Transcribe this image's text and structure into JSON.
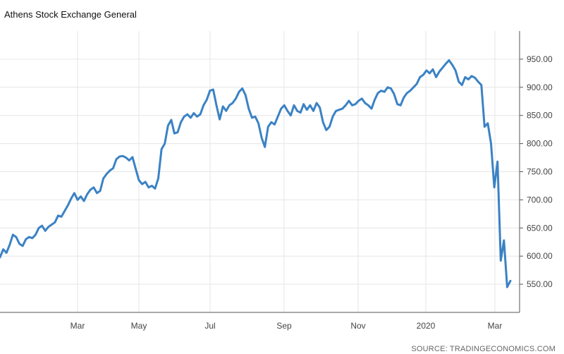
{
  "chart_data": {
    "type": "line",
    "title": "Athens Stock Exchange General",
    "xlabel": "",
    "ylabel": "",
    "x_tick_labels": [
      "Mar",
      "May",
      "Jul",
      "Sep",
      "Nov",
      "2020",
      "Mar"
    ],
    "y_tick_labels": [
      "550.00",
      "600.00",
      "650.00",
      "700.00",
      "750.00",
      "800.00",
      "850.00",
      "900.00",
      "950.00"
    ],
    "ylim": [
      500,
      1000
    ],
    "grid": true,
    "line_color": "#3b82c4",
    "series": [
      {
        "values": [
          598,
          612,
          606,
          620,
          638,
          634,
          622,
          618,
          630,
          634,
          632,
          638,
          650,
          654,
          645,
          652,
          656,
          660,
          672,
          670,
          680,
          690,
          702,
          712,
          700,
          706,
          698,
          710,
          718,
          722,
          712,
          716,
          738,
          746,
          752,
          756,
          772,
          777,
          778,
          775,
          770,
          776,
          755,
          735,
          728,
          732,
          722,
          725,
          720,
          738,
          790,
          800,
          832,
          842,
          818,
          820,
          838,
          848,
          852,
          846,
          854,
          848,
          852,
          868,
          878,
          894,
          896,
          868,
          843,
          866,
          858,
          868,
          872,
          880,
          892,
          898,
          886,
          862,
          846,
          848,
          836,
          810,
          794,
          830,
          838,
          834,
          848,
          862,
          868,
          858,
          850,
          868,
          858,
          855,
          870,
          860,
          868,
          858,
          872,
          864,
          838,
          824,
          830,
          848,
          858,
          860,
          862,
          868,
          876,
          868,
          870,
          876,
          880,
          872,
          868,
          862,
          878,
          890,
          894,
          892,
          900,
          898,
          888,
          870,
          868,
          882,
          890,
          894,
          900,
          906,
          918,
          922,
          930,
          925,
          932,
          918,
          928,
          935,
          942,
          948,
          940,
          930,
          910,
          904,
          918,
          914,
          920,
          917,
          910,
          904,
          830,
          836,
          800,
          722,
          768,
          592,
          628,
          545,
          556
        ]
      }
    ]
  },
  "source_text": "SOURCE: TRADINGECONOMICS.COM"
}
